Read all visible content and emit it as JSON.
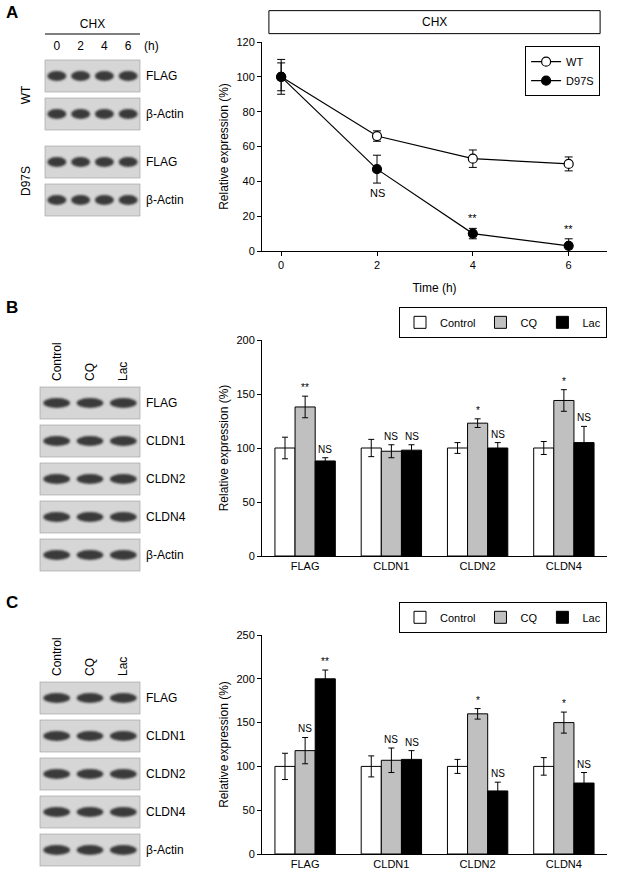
{
  "panel_labels": [
    "A",
    "B",
    "C"
  ],
  "blots": [
    {
      "header": "CHX",
      "lanes": [
        "0",
        "2",
        "4",
        "6"
      ],
      "lane_unit": "(h)",
      "groups": [
        {
          "name": "WT",
          "rows": [
            "FLAG",
            "β-Actin"
          ]
        },
        {
          "name": "D97S",
          "rows": [
            "FLAG",
            "β-Actin"
          ]
        }
      ]
    },
    {
      "lanes": [
        "Control",
        "CQ",
        "Lac"
      ],
      "rows": [
        "FLAG",
        "CLDN1",
        "CLDN2",
        "CLDN4",
        "β-Actin"
      ]
    },
    {
      "lanes": [
        "Control",
        "CQ",
        "Lac"
      ],
      "rows": [
        "FLAG",
        "CLDN1",
        "CLDN2",
        "CLDN4",
        "β-Actin"
      ]
    }
  ],
  "chart_data": [
    {
      "type": "line",
      "annotation": "CHX",
      "x_label": "Time (h)",
      "y_label": "Relative expression (%)",
      "x": [
        0,
        2,
        4,
        6
      ],
      "xlim": [
        -0.4,
        6.8
      ],
      "xticks": [
        0,
        2,
        4,
        6
      ],
      "ylim": [
        0,
        120
      ],
      "yticks": [
        0,
        20,
        40,
        60,
        80,
        100,
        120
      ],
      "grid": false,
      "legend": "upper right",
      "series": [
        {
          "name": "WT",
          "color": "#000000",
          "marker": "open circle",
          "values": [
            100,
            66,
            53,
            50
          ],
          "error": [
            10,
            3,
            5,
            4
          ]
        },
        {
          "name": "D97S",
          "color": "#000000",
          "marker": "circle",
          "values": [
            100,
            47,
            10,
            3
          ],
          "error": [
            8,
            8,
            3,
            4
          ],
          "significance": [
            null,
            "NS",
            "**",
            "**"
          ]
        }
      ]
    },
    {
      "type": "bar",
      "y_label": "Relative expression (%)",
      "categories": [
        "FLAG",
        "CLDN1",
        "CLDN2",
        "CLDN4"
      ],
      "ylim": [
        0,
        200
      ],
      "yticks": [
        0,
        50,
        100,
        150,
        200
      ],
      "grid": false,
      "legend": "top",
      "series": [
        {
          "name": "Control",
          "color": "#ffffff",
          "values": [
            100,
            100,
            100,
            100
          ],
          "error": [
            10,
            8,
            5,
            6
          ]
        },
        {
          "name": "CQ",
          "color": "#c0c0c0",
          "values": [
            138,
            97,
            123,
            144
          ],
          "error": [
            10,
            6,
            4,
            10
          ],
          "significance": [
            "**",
            "NS",
            "*",
            "*"
          ]
        },
        {
          "name": "Lac",
          "color": "#000000",
          "values": [
            88,
            98,
            100,
            105
          ],
          "error": [
            3,
            5,
            5,
            15
          ],
          "significance": [
            "NS",
            "NS",
            "NS",
            "NS"
          ]
        }
      ]
    },
    {
      "type": "bar",
      "y_label": "Relative expression (%)",
      "categories": [
        "FLAG",
        "CLDN1",
        "CLDN2",
        "CLDN4"
      ],
      "ylim": [
        0,
        250
      ],
      "yticks": [
        0,
        50,
        100,
        150,
        200,
        250
      ],
      "grid": false,
      "legend": "top",
      "series": [
        {
          "name": "Control",
          "color": "#ffffff",
          "values": [
            100,
            100,
            100,
            100
          ],
          "error": [
            15,
            12,
            8,
            10
          ]
        },
        {
          "name": "CQ",
          "color": "#c0c0c0",
          "values": [
            118,
            107,
            160,
            150
          ],
          "error": [
            15,
            14,
            6,
            12
          ],
          "significance": [
            "NS",
            "NS",
            "*",
            "*"
          ]
        },
        {
          "name": "Lac",
          "color": "#000000",
          "values": [
            200,
            108,
            72,
            81
          ],
          "error": [
            10,
            10,
            10,
            12
          ],
          "significance": [
            "**",
            "NS",
            "NS",
            "NS"
          ]
        }
      ]
    }
  ]
}
